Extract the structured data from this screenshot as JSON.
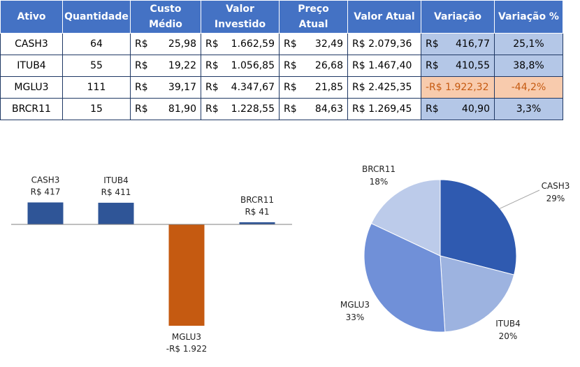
{
  "table": {
    "headers": [
      [
        "Ativo"
      ],
      [
        "Quantidade"
      ],
      [
        "Custo",
        "Médio"
      ],
      [
        "Valor",
        "Investido"
      ],
      [
        "Preço",
        "Atual"
      ],
      [
        "Valor Atual"
      ],
      [
        "Variação"
      ],
      [
        "Variação %"
      ]
    ],
    "currency": "R$",
    "rows": [
      {
        "ativo": "CASH3",
        "quantidade": "64",
        "custo_medio": "25,98",
        "valor_investido": "1.662,59",
        "preco_atual": "32,49",
        "valor_atual": "R$ 2.079,36",
        "variacao": "416,77",
        "variacao_pct": "25,1%",
        "negative": false
      },
      {
        "ativo": "ITUB4",
        "quantidade": "55",
        "custo_medio": "19,22",
        "valor_investido": "1.056,85",
        "preco_atual": "26,68",
        "valor_atual": "R$ 1.467,40",
        "variacao": "410,55",
        "variacao_pct": "38,8%",
        "negative": false
      },
      {
        "ativo": "MGLU3",
        "quantidade": "111",
        "custo_medio": "39,17",
        "valor_investido": "4.347,67",
        "preco_atual": "21,85",
        "valor_atual": "R$ 2.425,35",
        "variacao": "-R$ 1.922,32",
        "variacao_pct": "-44,2%",
        "negative": true
      },
      {
        "ativo": "BRCR11",
        "quantidade": "15",
        "custo_medio": "81,90",
        "valor_investido": "1.228,55",
        "preco_atual": "84,63",
        "valor_atual": "R$ 1.269,45",
        "variacao": "40,90",
        "variacao_pct": "3,3%",
        "negative": false
      }
    ]
  },
  "colors": {
    "header_bg": "#4472C4",
    "positive_bar": "#2F5597",
    "negative_bar": "#C55A11",
    "highlight_blue": "#B4C7E7",
    "highlight_orange": "#F8CBAD"
  },
  "chart_data": [
    {
      "type": "bar",
      "categories": [
        "CASH3",
        "ITUB4",
        "MGLU3",
        "BRCR11"
      ],
      "values": [
        416.77,
        410.55,
        -1922.32,
        40.9
      ],
      "data_labels": [
        "R$ 417",
        "R$ 411",
        "-R$ 1.922",
        "R$ 41"
      ],
      "ylim": [
        -1922.32,
        416.77
      ],
      "grid": false
    },
    {
      "type": "pie",
      "categories": [
        "CASH3",
        "ITUB4",
        "MGLU3",
        "BRCR11"
      ],
      "values": [
        29,
        20,
        33,
        18
      ],
      "data_labels": [
        "29%",
        "20%",
        "33%",
        "18%"
      ],
      "colors": [
        "#2F5AB0",
        "#9DB3E0",
        "#7090D8",
        "#BCCBEA"
      ]
    }
  ]
}
